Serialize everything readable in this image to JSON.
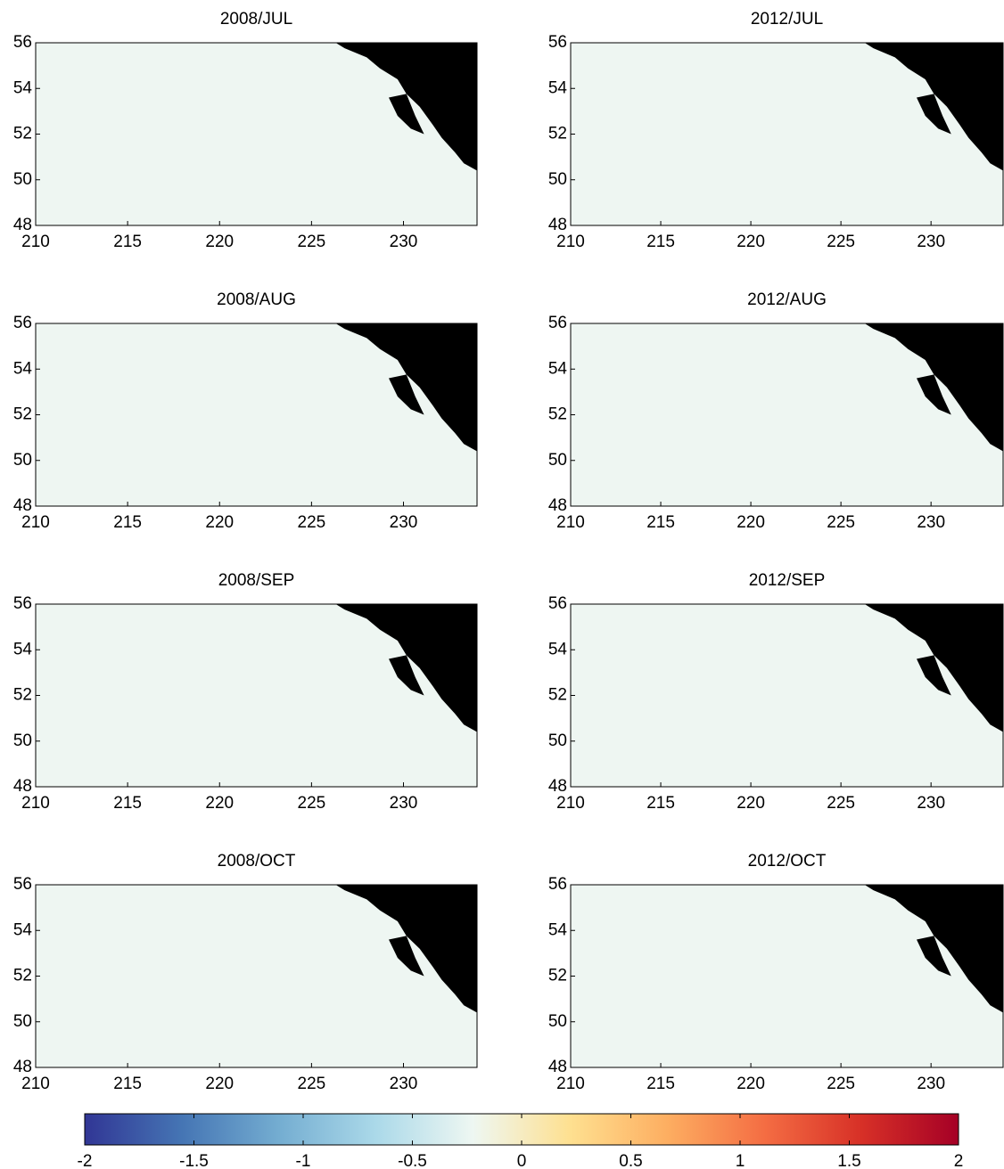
{
  "chart_data": [
    {
      "type": "heatmap",
      "title": "2008/JUL",
      "xlim": [
        210,
        234
      ],
      "ylim": [
        48,
        56
      ],
      "xticks": [
        210,
        215,
        220,
        225,
        230
      ],
      "yticks": [
        48,
        50,
        52,
        54,
        56
      ]
    },
    {
      "type": "heatmap",
      "title": "2012/JUL",
      "xlim": [
        210,
        234
      ],
      "ylim": [
        48,
        56
      ],
      "xticks": [
        210,
        215,
        220,
        225,
        230
      ],
      "yticks": [
        48,
        50,
        52,
        54,
        56
      ]
    },
    {
      "type": "heatmap",
      "title": "2008/AUG",
      "xlim": [
        210,
        234
      ],
      "ylim": [
        48,
        56
      ],
      "xticks": [
        210,
        215,
        220,
        225,
        230
      ],
      "yticks": [
        48,
        50,
        52,
        54,
        56
      ]
    },
    {
      "type": "heatmap",
      "title": "2012/AUG",
      "xlim": [
        210,
        234
      ],
      "ylim": [
        48,
        56
      ],
      "xticks": [
        210,
        215,
        220,
        225,
        230
      ],
      "yticks": [
        48,
        50,
        52,
        54,
        56
      ]
    },
    {
      "type": "heatmap",
      "title": "2008/SEP",
      "xlim": [
        210,
        234
      ],
      "ylim": [
        48,
        56
      ],
      "xticks": [
        210,
        215,
        220,
        225,
        230
      ],
      "yticks": [
        48,
        50,
        52,
        54,
        56
      ]
    },
    {
      "type": "heatmap",
      "title": "2012/SEP",
      "xlim": [
        210,
        234
      ],
      "ylim": [
        48,
        56
      ],
      "xticks": [
        210,
        215,
        220,
        225,
        230
      ],
      "yticks": [
        48,
        50,
        52,
        54,
        56
      ]
    },
    {
      "type": "heatmap",
      "title": "2008/OCT",
      "xlim": [
        210,
        234
      ],
      "ylim": [
        48,
        56
      ],
      "xticks": [
        210,
        215,
        220,
        225,
        230
      ],
      "yticks": [
        48,
        50,
        52,
        54,
        56
      ]
    },
    {
      "type": "heatmap",
      "title": "2012/OCT",
      "xlim": [
        210,
        234
      ],
      "ylim": [
        48,
        56
      ],
      "xticks": [
        210,
        215,
        220,
        225,
        230
      ],
      "yticks": [
        48,
        50,
        52,
        54,
        56
      ]
    },
    {
      "type": "colorbar",
      "clim": [
        -2,
        2
      ],
      "ticks": [
        -2,
        -1.5,
        -1,
        -0.5,
        0,
        0.5,
        1,
        1.5,
        2
      ],
      "colors": [
        "#313695",
        "#4575b4",
        "#74add1",
        "#abd9e9",
        "#eef7f2",
        "#fee090",
        "#fdae61",
        "#f46d43",
        "#d73027",
        "#a50026"
      ]
    }
  ]
}
